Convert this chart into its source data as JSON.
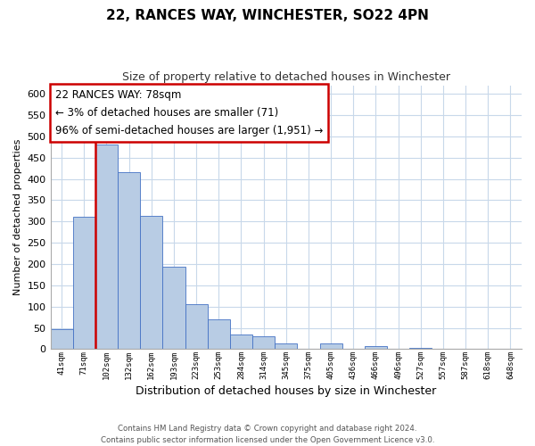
{
  "title": "22, RANCES WAY, WINCHESTER, SO22 4PN",
  "subtitle": "Size of property relative to detached houses in Winchester",
  "xlabel": "Distribution of detached houses by size in Winchester",
  "ylabel": "Number of detached properties",
  "bar_labels": [
    "41sqm",
    "71sqm",
    "102sqm",
    "132sqm",
    "162sqm",
    "193sqm",
    "223sqm",
    "253sqm",
    "284sqm",
    "314sqm",
    "345sqm",
    "375sqm",
    "405sqm",
    "436sqm",
    "466sqm",
    "496sqm",
    "527sqm",
    "557sqm",
    "587sqm",
    "618sqm",
    "648sqm"
  ],
  "bar_values": [
    47,
    312,
    480,
    415,
    313,
    193,
    105,
    69,
    35,
    30,
    14,
    0,
    14,
    0,
    8,
    0,
    2,
    0,
    0,
    0,
    1
  ],
  "bar_color": "#b8cce4",
  "bar_edge_color": "#4472c4",
  "highlight_color": "#cc0000",
  "highlight_bar_index": 1,
  "ylim": [
    0,
    620
  ],
  "yticks": [
    0,
    50,
    100,
    150,
    200,
    250,
    300,
    350,
    400,
    450,
    500,
    550,
    600
  ],
  "annotation_title": "22 RANCES WAY: 78sqm",
  "annotation_line1": "← 3% of detached houses are smaller (71)",
  "annotation_line2": "96% of semi-detached houses are larger (1,951) →",
  "annotation_box_color": "#ffffff",
  "annotation_box_edge": "#cc0000",
  "footer_line1": "Contains HM Land Registry data © Crown copyright and database right 2024.",
  "footer_line2": "Contains public sector information licensed under the Open Government Licence v3.0.",
  "background_color": "#ffffff",
  "grid_color": "#c8d8ea"
}
